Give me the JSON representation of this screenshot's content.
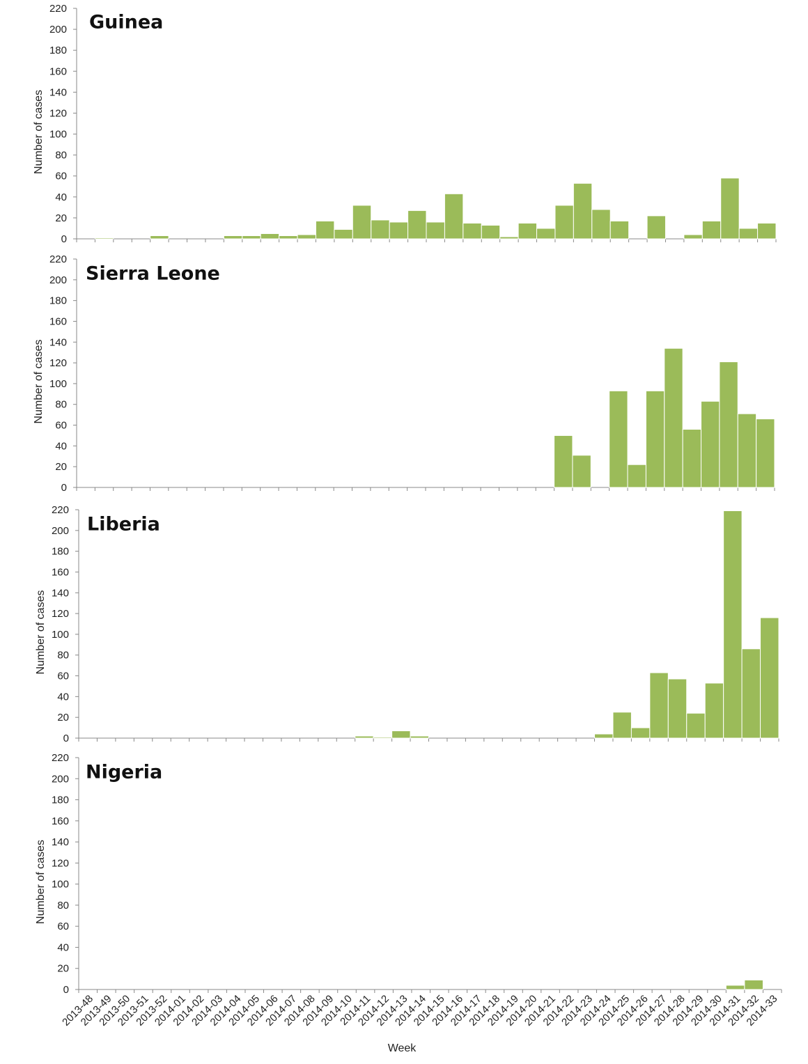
{
  "colors": {
    "bar": "#9bbb59",
    "bar_edge": "#ffffff",
    "axis": "#888888",
    "text": "#222222"
  },
  "chart_data": {
    "type": "bar",
    "categories": [
      "2013-48",
      "2013-49",
      "2013-50",
      "2013-51",
      "2013-52",
      "2014-01",
      "2014-02",
      "2014-03",
      "2014-04",
      "2014-05",
      "2014-06",
      "2014-07",
      "2014-08",
      "2014-09",
      "2014-10",
      "2014-11",
      "2014-12",
      "2014-13",
      "2014-14",
      "2014-15",
      "2014-16",
      "2014-17",
      "2014-18",
      "2014-19",
      "2014-20",
      "2014-21",
      "2014-22",
      "2014-23",
      "2014-24",
      "2014-25",
      "2014-26",
      "2014-27",
      "2014-28",
      "2014-29",
      "2014-30",
      "2014-31",
      "2014-32",
      "2014-33"
    ],
    "xlabel": "Week",
    "ylabel": "Number of cases",
    "ylim": [
      0,
      220
    ],
    "yticks": [
      0,
      20,
      40,
      60,
      80,
      100,
      120,
      140,
      160,
      180,
      200,
      220
    ],
    "grid": false,
    "panels": [
      {
        "title": "Guinea",
        "values": [
          0,
          1,
          0,
          0,
          3,
          0,
          0,
          0,
          3,
          3,
          5,
          3,
          4,
          17,
          9,
          32,
          18,
          16,
          27,
          16,
          43,
          15,
          13,
          2,
          15,
          10,
          32,
          53,
          28,
          17,
          0,
          22,
          0,
          4,
          17,
          58,
          10,
          15
        ]
      },
      {
        "title": "Sierra Leone",
        "values": [
          0,
          0,
          0,
          0,
          0,
          0,
          0,
          0,
          0,
          0,
          0,
          0,
          0,
          0,
          0,
          0,
          0,
          0,
          0,
          0,
          0,
          0,
          0,
          0,
          0,
          0,
          50,
          31,
          0,
          93,
          22,
          93,
          134,
          56,
          83,
          121,
          71,
          66
        ]
      },
      {
        "title": "Liberia",
        "values": [
          0,
          0,
          0,
          0,
          0,
          0,
          0,
          0,
          0,
          0,
          0,
          0,
          0,
          0,
          0,
          2,
          1,
          7,
          2,
          0,
          0,
          0,
          0,
          0,
          0,
          0,
          0,
          0,
          4,
          25,
          10,
          63,
          57,
          24,
          53,
          219,
          86,
          116
        ]
      },
      {
        "title": "Nigeria",
        "values": [
          0,
          0,
          0,
          0,
          0,
          0,
          0,
          0,
          0,
          0,
          0,
          0,
          0,
          0,
          0,
          0,
          0,
          0,
          0,
          0,
          0,
          0,
          0,
          0,
          0,
          0,
          0,
          0,
          0,
          0,
          0,
          0,
          0,
          0,
          0,
          4,
          9,
          0
        ]
      }
    ]
  }
}
